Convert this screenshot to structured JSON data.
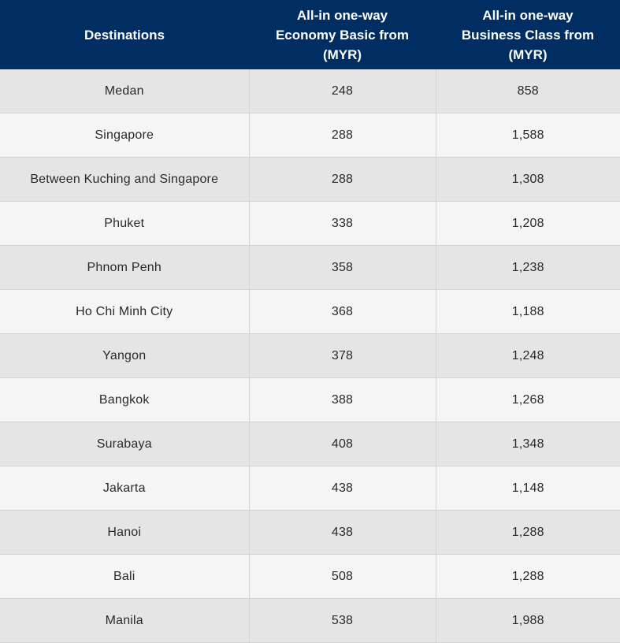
{
  "table": {
    "headers": [
      [
        "Destinations"
      ],
      [
        "All-in one-way",
        "Economy Basic from",
        "(MYR)"
      ],
      [
        "All-in one-way",
        "Business Class from",
        "(MYR)"
      ]
    ],
    "rows": [
      [
        "Medan",
        "248",
        "858"
      ],
      [
        "Singapore",
        "288",
        "1,588"
      ],
      [
        "Between Kuching and Singapore",
        "288",
        "1,308"
      ],
      [
        "Phuket",
        "338",
        "1,208"
      ],
      [
        "Phnom Penh",
        "358",
        "1,238"
      ],
      [
        "Ho Chi Minh City",
        "368",
        "1,188"
      ],
      [
        "Yangon",
        "378",
        "1,248"
      ],
      [
        "Bangkok",
        "388",
        "1,268"
      ],
      [
        "Surabaya",
        "408",
        "1,348"
      ],
      [
        "Jakarta",
        "438",
        "1,148"
      ],
      [
        "Hanoi",
        "438",
        "1,288"
      ],
      [
        "Bali",
        "508",
        "1,288"
      ],
      [
        "Manila",
        "538",
        "1,988"
      ]
    ]
  }
}
